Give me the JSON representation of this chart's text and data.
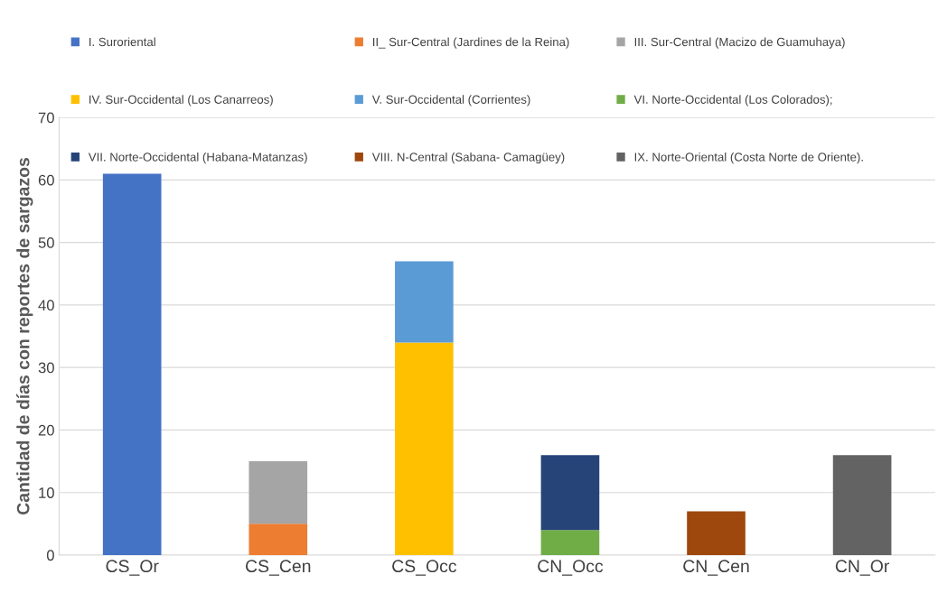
{
  "chart_data": {
    "type": "bar",
    "stacked": true,
    "ylabel": "Cantidad de días con reportes de sargazos",
    "categories": [
      "CS_Or",
      "CS_Cen",
      "CS_Occ",
      "CN_Occ",
      "CN_Cen",
      "CN_Or"
    ],
    "series": [
      {
        "name": "I. Suroriental",
        "color": "#4472c4",
        "values": [
          61,
          null,
          null,
          null,
          null,
          null
        ]
      },
      {
        "name": "II_ Sur-Central (Jardines de la Reina)",
        "color": "#ed7d31",
        "values": [
          null,
          5,
          null,
          null,
          null,
          null
        ]
      },
      {
        "name": "III. Sur-Central (Macizo de Guamuhaya)",
        "color": "#a5a5a5",
        "values": [
          null,
          10,
          null,
          null,
          null,
          null
        ]
      },
      {
        "name": "IV. Sur-Occidental (Los Canarreos)",
        "color": "#ffc000",
        "values": [
          null,
          null,
          34,
          null,
          null,
          null
        ]
      },
      {
        "name": "V. Sur-Occidental (Corrientes)",
        "color": "#5b9bd5",
        "values": [
          null,
          null,
          13,
          null,
          null,
          null
        ]
      },
      {
        "name": "VI. Norte-Occidental (Los Colorados);",
        "color": "#70ad47",
        "values": [
          null,
          null,
          null,
          4,
          null,
          null
        ]
      },
      {
        "name": "VII. Norte-Occidental (Habana-Matanzas)",
        "color": "#264478",
        "values": [
          null,
          null,
          null,
          12,
          null,
          null
        ]
      },
      {
        "name": "VIII. N-Central (Sabana- Camagüey)",
        "color": "#9e480e",
        "values": [
          null,
          null,
          null,
          null,
          7,
          null
        ]
      },
      {
        "name": "IX. Norte-Oriental (Costa Norte de Oriente).",
        "color": "#636363",
        "values": [
          null,
          null,
          null,
          null,
          null,
          16
        ]
      }
    ],
    "ylim": [
      0,
      70
    ],
    "yticks": [
      0,
      10,
      20,
      30,
      40,
      50,
      60,
      70
    ],
    "grid": "y",
    "legend": "top"
  }
}
